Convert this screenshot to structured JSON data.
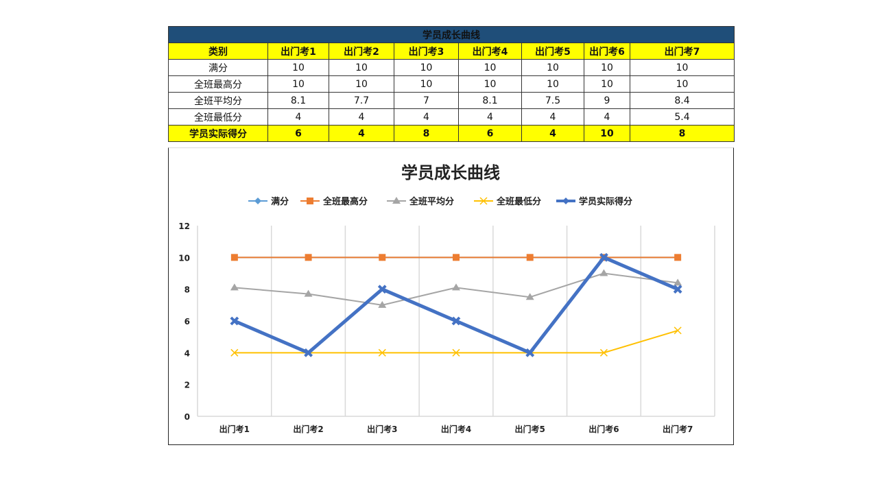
{
  "table": {
    "title": "学员成长曲线",
    "header": [
      "类别",
      "出门考1",
      "出门考2",
      "出门考3",
      "出门考4",
      "出门考5",
      "出门考6",
      "出门考7"
    ],
    "rows": [
      {
        "label": "满分",
        "values": [
          "10",
          "10",
          "10",
          "10",
          "10",
          "10",
          "10"
        ]
      },
      {
        "label": "全班最高分",
        "values": [
          "10",
          "10",
          "10",
          "10",
          "10",
          "10",
          "10"
        ]
      },
      {
        "label": "全班平均分",
        "values": [
          "8.1",
          "7.7",
          "7",
          "8.1",
          "7.5",
          "9",
          "8.4"
        ]
      },
      {
        "label": "全班最低分",
        "values": [
          "4",
          "4",
          "4",
          "4",
          "4",
          "4",
          "5.4"
        ]
      },
      {
        "label": "学员实际得分",
        "values": [
          "6",
          "4",
          "8",
          "6",
          "4",
          "10",
          "8"
        ]
      }
    ],
    "colors": {
      "title_bg": "#1f4e79",
      "highlight_bg": "#ffff00"
    }
  },
  "chart_data": {
    "type": "line",
    "title": "学员成长曲线",
    "xlabel": "",
    "ylabel": "",
    "categories": [
      "出门考1",
      "出门考2",
      "出门考3",
      "出门考4",
      "出门考5",
      "出门考6",
      "出门考7"
    ],
    "ylim": [
      0,
      12
    ],
    "yticks": [
      0,
      2,
      4,
      6,
      8,
      10,
      12
    ],
    "grid": "vertical",
    "legend_position": "top",
    "series": [
      {
        "name": "满分",
        "values": [
          10,
          10,
          10,
          10,
          10,
          10,
          10
        ],
        "color": "#5b9bd5",
        "marker": "diamond"
      },
      {
        "name": "全班最高分",
        "values": [
          10,
          10,
          10,
          10,
          10,
          10,
          10
        ],
        "color": "#ed7d31",
        "marker": "square"
      },
      {
        "name": "全班平均分",
        "values": [
          8.1,
          7.7,
          7,
          8.1,
          7.5,
          9,
          8.4
        ],
        "color": "#a5a5a5",
        "marker": "triangle"
      },
      {
        "name": "全班最低分",
        "values": [
          4,
          4,
          4,
          4,
          4,
          4,
          5.4
        ],
        "color": "#ffc000",
        "marker": "x"
      },
      {
        "name": "学员实际得分",
        "values": [
          6,
          4,
          8,
          6,
          4,
          10,
          8
        ],
        "color": "#4472c4",
        "marker": "x-bold",
        "width": 5
      }
    ]
  }
}
